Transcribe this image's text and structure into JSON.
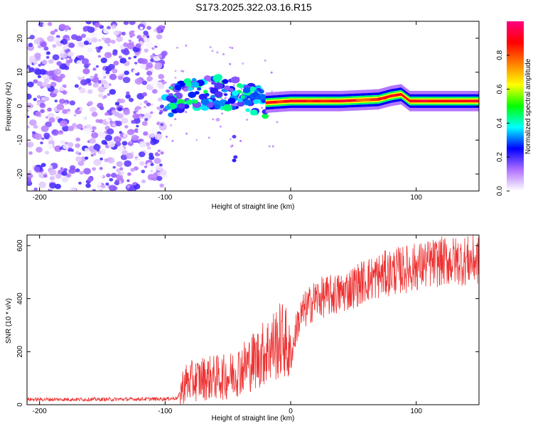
{
  "title": "S173.2025.322.03.16.R15",
  "chart_data": [
    {
      "type": "heatmap",
      "name": "spectrogram",
      "xlabel": "Height of straight line (km)",
      "ylabel": "Frequency (Hz)",
      "xlim": [
        -210,
        150
      ],
      "ylim": [
        -25,
        25
      ],
      "xticks": [
        -200,
        -100,
        0,
        100
      ],
      "yticks": [
        -20,
        -10,
        0,
        10,
        20
      ],
      "colorbar": {
        "label": "Normalized spectral amplitude",
        "range": [
          0,
          1
        ],
        "ticks": [
          0.0,
          0.2,
          0.4,
          0.6,
          0.8
        ],
        "tick_labels": [
          "0.0",
          "0.2",
          "0.4",
          "0.6",
          "0.8"
        ],
        "colors": [
          "#ffffff",
          "#b070ff",
          "#0000ff",
          "#00ffff",
          "#00ff00",
          "#ffff00",
          "#ff8000",
          "#ff0000",
          "#ff0080"
        ]
      },
      "features": [
        {
          "name": "noise-field",
          "x_range": [
            -210,
            -100
          ],
          "y_range": [
            -25,
            25
          ],
          "amplitude": 0.15
        },
        {
          "name": "carrier-onset",
          "x_range": [
            -100,
            -20
          ],
          "y_range": [
            -3,
            8
          ],
          "amplitude": 0.35
        },
        {
          "name": "carrier-line",
          "x": [
            -20,
            0,
            5,
            40,
            70,
            80,
            88,
            95,
            100,
            150
          ],
          "y": [
            1.0,
            1.5,
            1.5,
            1.5,
            2.0,
            3.0,
            3.5,
            1.5,
            1.5,
            1.5
          ],
          "amplitude": 0.9
        }
      ]
    },
    {
      "type": "line",
      "name": "snr",
      "xlabel": "Height of straight line (km)",
      "ylabel": "SNR (10 * v/v)",
      "xlim": [
        -210,
        150
      ],
      "ylim": [
        0,
        640
      ],
      "xticks": [
        -200,
        -100,
        0,
        100
      ],
      "yticks": [
        0,
        200,
        400,
        600
      ],
      "color": "#ee3333",
      "series": [
        {
          "name": "SNR",
          "x": [
            -210,
            -150,
            -100,
            -90,
            -85,
            -70,
            -50,
            -35,
            -25,
            -15,
            -5,
            0,
            5,
            10,
            20,
            40,
            60,
            80,
            100,
            120,
            150
          ],
          "y": [
            20,
            20,
            22,
            25,
            80,
            100,
            105,
            150,
            180,
            220,
            250,
            170,
            300,
            350,
            400,
            420,
            470,
            500,
            520,
            540,
            545
          ]
        }
      ]
    }
  ]
}
